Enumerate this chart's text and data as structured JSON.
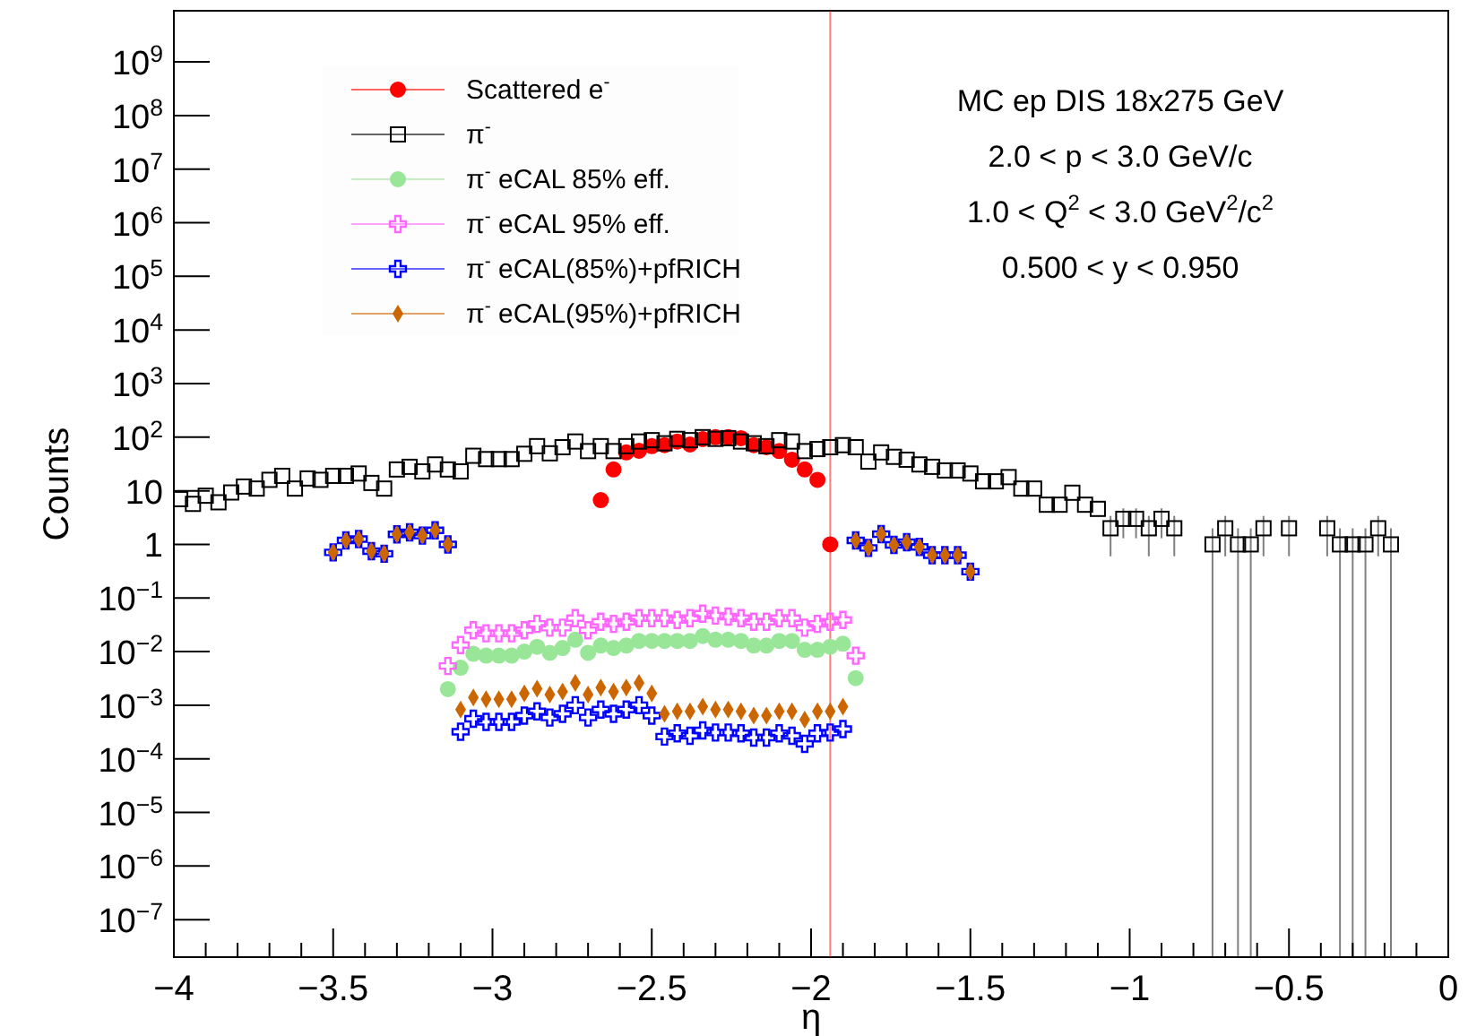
{
  "chart_data": {
    "type": "scatter",
    "xlabel": "η",
    "ylabel": "Counts",
    "log": "y",
    "legend": "top left",
    "xlim": [
      -4,
      0
    ],
    "ylim": [
      2e-08,
      9000000000.0
    ],
    "xticks": [
      {
        "value": -4,
        "label": "−4"
      },
      {
        "value": -3.9,
        "label": null
      },
      {
        "value": -3.8,
        "label": null
      },
      {
        "value": -3.7,
        "label": null
      },
      {
        "value": -3.6,
        "label": null
      },
      {
        "value": -3.5,
        "label": "−3.5"
      },
      {
        "value": -3.4,
        "label": null
      },
      {
        "value": -3.3,
        "label": null
      },
      {
        "value": -3.2,
        "label": null
      },
      {
        "value": -3.1,
        "label": null
      },
      {
        "value": -3,
        "label": "−3"
      },
      {
        "value": -2.9,
        "label": null
      },
      {
        "value": -2.8,
        "label": null
      },
      {
        "value": -2.7,
        "label": null
      },
      {
        "value": -2.6,
        "label": null
      },
      {
        "value": -2.5,
        "label": "−2.5"
      },
      {
        "value": -2.4,
        "label": null
      },
      {
        "value": -2.3,
        "label": null
      },
      {
        "value": -2.2,
        "label": null
      },
      {
        "value": -2.1,
        "label": null
      },
      {
        "value": -2,
        "label": "−2"
      },
      {
        "value": -1.9,
        "label": null
      },
      {
        "value": -1.8,
        "label": null
      },
      {
        "value": -1.7,
        "label": null
      },
      {
        "value": -1.6,
        "label": null
      },
      {
        "value": -1.5,
        "label": "−1.5"
      },
      {
        "value": -1.4,
        "label": null
      },
      {
        "value": -1.3,
        "label": null
      },
      {
        "value": -1.2,
        "label": null
      },
      {
        "value": -1.1,
        "label": null
      },
      {
        "value": -1,
        "label": "−1"
      },
      {
        "value": -0.9,
        "label": null
      },
      {
        "value": -0.8,
        "label": null
      },
      {
        "value": -0.7,
        "label": null
      },
      {
        "value": -0.6,
        "label": null
      },
      {
        "value": -0.5,
        "label": "−0.5"
      },
      {
        "value": -0.4,
        "label": null
      },
      {
        "value": -0.3,
        "label": null
      },
      {
        "value": -0.2,
        "label": null
      },
      {
        "value": -0.1,
        "label": null
      },
      {
        "value": 0,
        "label": "0"
      }
    ],
    "yticks": [
      {
        "value": 1e-07,
        "label": "10$^{−7}$"
      },
      {
        "value": 1e-06,
        "label": "10$^{−6}$"
      },
      {
        "value": 1e-05,
        "label": "10$^{−5}$"
      },
      {
        "value": 0.0001,
        "label": "10$^{−4}$"
      },
      {
        "value": 0.001,
        "label": "10$^{−3}$"
      },
      {
        "value": 0.01,
        "label": "10$^{−2}$"
      },
      {
        "value": 0.1,
        "label": "10$^{−1}$"
      },
      1,
      10,
      {
        "value": 100,
        "label": "10$^{2}$"
      },
      {
        "value": 1000,
        "label": "10$^{3}$"
      },
      {
        "value": 10000.0,
        "label": "10$^{4}$"
      },
      {
        "value": 100000.0,
        "label": "10$^{5}$"
      },
      {
        "value": 1000000.0,
        "label": "10$^{6}$"
      },
      {
        "value": 10000000.0,
        "label": "10$^{7}$"
      },
      {
        "value": 100000000.0,
        "label": "10$^{8}$"
      },
      {
        "value": 1000000000.0,
        "label": "10$^{9}$"
      }
    ],
    "annotations": [
      "MC ep DIS 18x275 GeV",
      "2.0 < p < 3.0 GeV/c",
      "1.0 < Q$^{2}$ < 3.0 GeV$^{2}$/c$^{2}$",
      "0.500 < y < 0.950"
    ],
    "series": [
      {
        "name": "Scattered e$^{-}$",
        "color": "#ff0000",
        "marker": "circle",
        "x": [
          -2.66,
          -2.62,
          -2.58,
          -2.54,
          -2.5,
          -2.46,
          -2.42,
          -2.38,
          -2.34,
          -2.3,
          -2.26,
          -2.22,
          -2.18,
          -2.14,
          -2.1,
          -2.06,
          -2.02,
          -1.98,
          -1.94
        ],
        "values": [
          6.7,
          25,
          52,
          56,
          68,
          71,
          83,
          73,
          92,
          100,
          100,
          96,
          71,
          65,
          55,
          38,
          25,
          16,
          1
        ],
        "errors": [
          null,
          null,
          null,
          null,
          null,
          null,
          null,
          null,
          null,
          null,
          null,
          null,
          null,
          null,
          null,
          null,
          null,
          null,
          [
            2e-08,
            9000000000.0
          ]
        ]
      },
      {
        "name": "π$^{-}$",
        "color": "#000000",
        "marker": "square",
        "x": [
          -3.98,
          -3.94,
          -3.9,
          -3.86,
          -3.82,
          -3.78,
          -3.74,
          -3.7,
          -3.66,
          -3.62,
          -3.58,
          -3.54,
          -3.5,
          -3.46,
          -3.42,
          -3.38,
          -3.34,
          -3.3,
          -3.26,
          -3.22,
          -3.18,
          -3.14,
          -3.1,
          -3.06,
          -3.02,
          -2.98,
          -2.94,
          -2.9,
          -2.86,
          -2.82,
          -2.78,
          -2.74,
          -2.7,
          -2.66,
          -2.62,
          -2.58,
          -2.54,
          -2.5,
          -2.46,
          -2.42,
          -2.38,
          -2.34,
          -2.3,
          -2.26,
          -2.22,
          -2.18,
          -2.14,
          -2.1,
          -2.06,
          -2.02,
          -1.98,
          -1.94,
          -1.9,
          -1.86,
          -1.82,
          -1.78,
          -1.74,
          -1.7,
          -1.66,
          -1.62,
          -1.58,
          -1.54,
          -1.5,
          -1.46,
          -1.42,
          -1.38,
          -1.34,
          -1.3,
          -1.26,
          -1.22,
          -1.18,
          -1.14,
          -1.1,
          -1.06,
          -1.02,
          -0.98,
          -0.94,
          -0.9,
          -0.86,
          -0.82,
          -0.78,
          -0.74,
          -0.7,
          -0.66,
          -0.62,
          -0.58,
          -0.54,
          -0.5,
          -0.46,
          -0.42,
          -0.38,
          -0.34,
          -0.3,
          -0.26,
          -0.22,
          -0.18
        ],
        "values": [
          7,
          5.7,
          8.1,
          6.1,
          9.3,
          12,
          11,
          16,
          19,
          11,
          17,
          16,
          19,
          19,
          21,
          14,
          11,
          25,
          28,
          23,
          31,
          25,
          23,
          45,
          39,
          39,
          39,
          49,
          68,
          50,
          65,
          83,
          55,
          68,
          55,
          68,
          83,
          88,
          77,
          93,
          88,
          100,
          93,
          96,
          83,
          77,
          68,
          88,
          83,
          55,
          60,
          65,
          71,
          65,
          35,
          52,
          43,
          38,
          31,
          28,
          24,
          24,
          21,
          15,
          15,
          18,
          11,
          11,
          5.5,
          5.5,
          9.2,
          5.5,
          4.6,
          2,
          3,
          3,
          2,
          3,
          2,
          null,
          null,
          1,
          2,
          1,
          1,
          2,
          null,
          2,
          null,
          null,
          2,
          1,
          1,
          1,
          2,
          1
        ],
        "errors": [
          null,
          null,
          null,
          null,
          null,
          null,
          null,
          null,
          null,
          null,
          null,
          null,
          null,
          null,
          null,
          null,
          null,
          null,
          null,
          null,
          null,
          null,
          null,
          null,
          null,
          null,
          null,
          null,
          null,
          null,
          null,
          null,
          null,
          null,
          null,
          null,
          null,
          null,
          null,
          null,
          null,
          null,
          null,
          null,
          null,
          null,
          null,
          null,
          null,
          null,
          null,
          null,
          null,
          null,
          null,
          null,
          null,
          null,
          null,
          null,
          null,
          null,
          null,
          null,
          null,
          null,
          null,
          null,
          null,
          null,
          null,
          null,
          null,
          [
            0.6,
            3.4
          ],
          [
            1.3,
            4.7
          ],
          [
            1.3,
            4.7
          ],
          [
            0.6,
            3.4
          ],
          [
            1.3,
            4.7
          ],
          [
            0.6,
            3.4
          ],
          null,
          null,
          [
            2e-08,
            2
          ],
          [
            0.6,
            3.4
          ],
          [
            2e-08,
            2
          ],
          [
            2e-08,
            2
          ],
          [
            0.6,
            3.4
          ],
          null,
          [
            0.6,
            3.4
          ],
          null,
          null,
          [
            0.6,
            3.4
          ],
          [
            2e-08,
            2
          ],
          [
            2e-08,
            2
          ],
          [
            2e-08,
            2
          ],
          [
            0.6,
            3.4
          ],
          [
            2e-08,
            2
          ]
        ]
      },
      {
        "name": "π$^{-}$ eCAL 85% eff.",
        "color": "#99e699",
        "marker": "circle",
        "x": [
          -3.14,
          -3.1,
          -3.06,
          -3.02,
          -2.98,
          -2.94,
          -2.9,
          -2.86,
          -2.82,
          -2.78,
          -2.74,
          -2.7,
          -2.66,
          -2.62,
          -2.58,
          -2.54,
          -2.5,
          -2.46,
          -2.42,
          -2.38,
          -2.34,
          -2.3,
          -2.26,
          -2.22,
          -2.18,
          -2.14,
          -2.1,
          -2.06,
          -2.02,
          -1.98,
          -1.94,
          -1.9,
          -1.86
        ],
        "values": [
          0.002,
          0.005,
          0.0091,
          0.0084,
          0.0084,
          0.0084,
          0.01,
          0.0123,
          0.0095,
          0.0117,
          0.0167,
          0.0095,
          0.013,
          0.0117,
          0.013,
          0.0158,
          0.0158,
          0.0158,
          0.0158,
          0.0158,
          0.0195,
          0.0167,
          0.0167,
          0.0158,
          0.013,
          0.013,
          0.0158,
          0.0158,
          0.0108,
          0.0108,
          0.0123,
          0.014,
          0.0032
        ]
      },
      {
        "name": "π$^{-}$ eCAL 95% eff.",
        "color": "#ff66ff",
        "marker": "cross",
        "x": [
          -3.14,
          -3.1,
          -3.06,
          -3.02,
          -2.98,
          -2.94,
          -2.9,
          -2.86,
          -2.82,
          -2.78,
          -2.74,
          -2.7,
          -2.66,
          -2.62,
          -2.58,
          -2.54,
          -2.5,
          -2.46,
          -2.42,
          -2.38,
          -2.34,
          -2.3,
          -2.26,
          -2.22,
          -2.18,
          -2.14,
          -2.1,
          -2.06,
          -2.02,
          -1.98,
          -1.94,
          -1.9,
          -1.86
        ],
        "values": [
          0.0054,
          0.0133,
          0.025,
          0.022,
          0.022,
          0.022,
          0.025,
          0.033,
          0.028,
          0.028,
          0.042,
          0.025,
          0.036,
          0.033,
          0.036,
          0.042,
          0.042,
          0.042,
          0.039,
          0.042,
          0.051,
          0.047,
          0.045,
          0.042,
          0.036,
          0.036,
          0.042,
          0.042,
          0.028,
          0.033,
          0.036,
          0.039,
          0.0084
        ]
      },
      {
        "name": "π$^{-}$ eCAL(85%)+pfRICH",
        "color": "#0000ff",
        "marker": "cross",
        "x": [
          -3.5,
          -3.46,
          -3.42,
          -3.38,
          -3.34,
          -3.3,
          -3.26,
          -3.22,
          -3.18,
          -3.14,
          -3.1,
          -3.06,
          -3.02,
          -2.98,
          -2.94,
          -2.9,
          -2.86,
          -2.82,
          -2.78,
          -2.74,
          -2.7,
          -2.66,
          -2.62,
          -2.58,
          -2.54,
          -2.5,
          -2.46,
          -2.42,
          -2.38,
          -2.34,
          -2.3,
          -2.26,
          -2.22,
          -2.18,
          -2.14,
          -2.1,
          -2.06,
          -2.02,
          -1.98,
          -1.94,
          -1.9,
          -1.86,
          -1.82,
          -1.78,
          -1.74,
          -1.7,
          -1.66,
          -1.62,
          -1.58,
          -1.54,
          -1.5
        ],
        "values": [
          0.71,
          1.19,
          1.26,
          0.75,
          0.67,
          1.54,
          1.68,
          1.46,
          1.83,
          1.0,
          0.00032,
          0.00056,
          0.00049,
          0.00049,
          0.00049,
          0.00064,
          0.00077,
          0.00059,
          0.00069,
          0.001,
          0.00059,
          0.00083,
          0.00069,
          0.00083,
          0.001,
          0.00064,
          0.00026,
          0.0003,
          0.00027,
          0.00034,
          0.00031,
          0.00031,
          0.0003,
          0.00025,
          0.00025,
          0.0003,
          0.00027,
          0.00019,
          0.0003,
          0.00031,
          0.00036,
          1.19,
          0.86,
          1.55,
          0.98,
          1.1,
          0.9,
          0.63,
          0.63,
          0.63,
          0.31
        ]
      },
      {
        "name": "π$^{-}$ eCAL(95%)+pfRICH",
        "color": "#cc6600",
        "marker": "diamond",
        "x": [
          -3.5,
          -3.46,
          -3.42,
          -3.38,
          -3.34,
          -3.3,
          -3.26,
          -3.22,
          -3.18,
          -3.14,
          -3.1,
          -3.06,
          -3.02,
          -2.98,
          -2.94,
          -2.9,
          -2.86,
          -2.82,
          -2.78,
          -2.74,
          -2.7,
          -2.66,
          -2.62,
          -2.58,
          -2.54,
          -2.5,
          -2.46,
          -2.42,
          -2.38,
          -2.34,
          -2.3,
          -2.26,
          -2.22,
          -2.18,
          -2.14,
          -2.1,
          -2.06,
          -2.02,
          -1.98,
          -1.94,
          -1.9,
          -1.86,
          -1.82,
          -1.78,
          -1.74,
          -1.7,
          -1.66,
          -1.62,
          -1.58,
          -1.54,
          -1.5
        ],
        "values": [
          0.71,
          1.19,
          1.26,
          0.75,
          0.67,
          1.54,
          1.68,
          1.46,
          1.83,
          1.0,
          0.00083,
          0.00139,
          0.00129,
          0.00129,
          0.00129,
          0.00166,
          0.00204,
          0.00158,
          0.0018,
          0.0026,
          0.00158,
          0.00214,
          0.0018,
          0.00214,
          0.0026,
          0.00166,
          0.00069,
          0.00077,
          0.00077,
          0.00094,
          0.00083,
          0.00083,
          0.00077,
          0.00064,
          0.00064,
          0.00077,
          0.00077,
          0.00054,
          0.00077,
          0.00077,
          0.00094,
          1.19,
          0.86,
          1.55,
          0.98,
          1.1,
          0.9,
          0.63,
          0.63,
          0.63,
          0.31
        ]
      }
    ]
  }
}
